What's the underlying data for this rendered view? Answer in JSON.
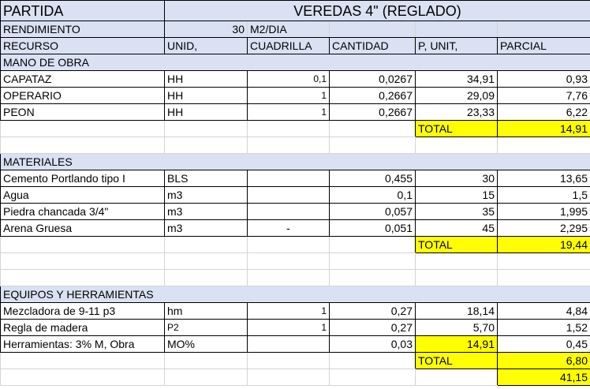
{
  "header": {
    "partida_label": "PARTIDA",
    "partida_value": "VEREDAS 4\" (REGLADO)",
    "rendimiento_label": "RENDIMIENTO",
    "rendimiento_value": "30",
    "rendimiento_unit": "M2/DIA"
  },
  "columns": [
    "RECURSO",
    "UNID,",
    "CUADRILLA",
    "CANTIDAD",
    "P, UNIT,",
    "PARCIAL"
  ],
  "mano_obra": {
    "title": "MANO DE OBRA",
    "rows": [
      {
        "recurso": "CAPATAZ",
        "unid": "HH",
        "cuadrilla": "0,1",
        "cantidad": "0,0267",
        "punit": "34,91",
        "parcial": "0,93"
      },
      {
        "recurso": "OPERARIO",
        "unid": "HH",
        "cuadrilla": "1",
        "cantidad": "0,2667",
        "punit": "29,09",
        "parcial": "7,76"
      },
      {
        "recurso": "PEON",
        "unid": "HH",
        "cuadrilla": "1",
        "cantidad": "0,2667",
        "punit": "23,33",
        "parcial": "6,22"
      }
    ],
    "total_label": "TOTAL",
    "total_value": "14,91"
  },
  "materiales": {
    "title": "MATERIALES",
    "rows": [
      {
        "recurso": "Cemento Portlando tipo I",
        "unid": "BLS",
        "cuadrilla": "",
        "cantidad": "0,455",
        "punit": "30",
        "parcial": "13,65"
      },
      {
        "recurso": "Agua",
        "unid": "m3",
        "cuadrilla": "",
        "cantidad": "0,1",
        "punit": "15",
        "parcial": "1,5"
      },
      {
        "recurso": "Piedra chancada 3/4\"",
        "unid": "m3",
        "cuadrilla": "",
        "cantidad": "0,057",
        "punit": "35",
        "parcial": "1,995"
      },
      {
        "recurso": "Arena Gruesa",
        "unid": "m3",
        "cuadrilla": "-",
        "cantidad": "0,051",
        "punit": "45",
        "parcial": "2,295"
      }
    ],
    "total_label": "TOTAL",
    "total_value": "19,44"
  },
  "equipos": {
    "title": "EQUIPOS Y HERRAMIENTAS",
    "rows": [
      {
        "recurso": "Mezcladora de 9-11 p3",
        "unid": "hm",
        "cuadrilla": "1",
        "cantidad": "0,27",
        "punit": "18,14",
        "parcial": "4,84"
      },
      {
        "recurso": "Regla de madera",
        "unid": "P2",
        "cuadrilla": "1",
        "cantidad": "0,27",
        "punit": "5,70",
        "parcial": "1,52"
      },
      {
        "recurso": "Herramientas: 3% M, Obra",
        "unid": "MO%",
        "cuadrilla": "",
        "cantidad": "0,03",
        "punit": "14,91",
        "parcial": "0,45"
      }
    ],
    "total_label": "TOTAL",
    "total_value": "6,80"
  },
  "grand_total": "41,15",
  "colors": {
    "header_blue": "#d9e1f2",
    "highlight_yellow": "#ffff00"
  }
}
